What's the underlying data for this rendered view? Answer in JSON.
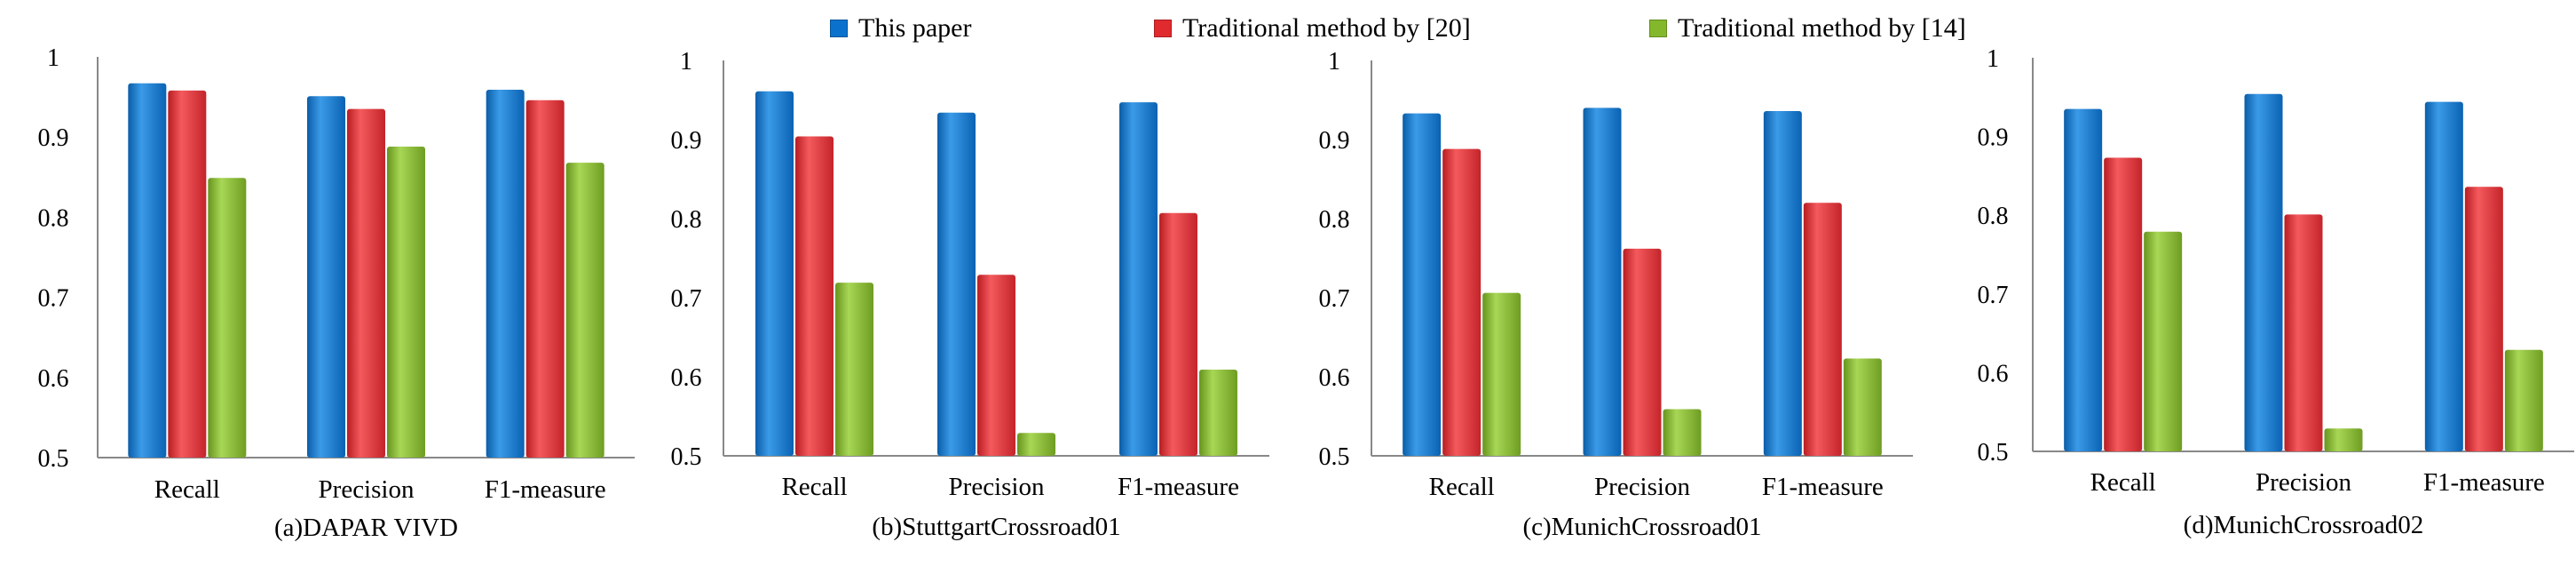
{
  "legend": {
    "entries": [
      "This paper",
      "Traditional method by [20]",
      "Traditional method by [14]"
    ]
  },
  "colors": {
    "this_paper": "#0a72cc",
    "method_20": "#e02a2e",
    "method_14": "#84b82c",
    "axis": "#888888"
  },
  "chart_data": [
    {
      "type": "bar",
      "title": "(a)DAPAR VIVD",
      "categories": [
        "Recall",
        "Precision",
        "F1-measure"
      ],
      "series": [
        {
          "name": "This paper",
          "values": [
            0.967,
            0.951,
            0.959
          ]
        },
        {
          "name": "Traditional method by [20]",
          "values": [
            0.958,
            0.935,
            0.946
          ]
        },
        {
          "name": "Traditional method by [14]",
          "values": [
            0.849,
            0.888,
            0.868
          ]
        }
      ],
      "ylim": [
        0.5,
        1
      ],
      "yticks": [
        "0.5",
        "0.6",
        "0.7",
        "0.8",
        "0.9",
        "1"
      ],
      "xlabel": "",
      "ylabel": ""
    },
    {
      "type": "bar",
      "title": "(b)StuttgartCrossroad01",
      "categories": [
        "Recall",
        "Precision",
        "F1-measure"
      ],
      "series": [
        {
          "name": "This paper",
          "values": [
            0.961,
            0.934,
            0.947
          ]
        },
        {
          "name": "Traditional method by [20]",
          "values": [
            0.904,
            0.729,
            0.807
          ]
        },
        {
          "name": "Traditional method by [14]",
          "values": [
            0.719,
            0.529,
            0.609
          ]
        }
      ],
      "ylim": [
        0.5,
        1
      ],
      "yticks": [
        "0.5",
        "0.6",
        "0.7",
        "0.8",
        "0.9",
        "1"
      ],
      "xlabel": "",
      "ylabel": ""
    },
    {
      "type": "bar",
      "title": "(c)MunichCrossroad01",
      "categories": [
        "Recall",
        "Precision",
        "F1-measure"
      ],
      "series": [
        {
          "name": "This paper",
          "values": [
            0.933,
            0.94,
            0.936
          ]
        },
        {
          "name": "Traditional method by [20]",
          "values": [
            0.888,
            0.762,
            0.82
          ]
        },
        {
          "name": "Traditional method by [14]",
          "values": [
            0.706,
            0.559,
            0.623
          ]
        }
      ],
      "ylim": [
        0.5,
        1
      ],
      "yticks": [
        "0.5",
        "0.6",
        "0.7",
        "0.8",
        "0.9",
        "1"
      ],
      "xlabel": "",
      "ylabel": ""
    },
    {
      "type": "bar",
      "title": "(d)MunichCrossroad02",
      "categories": [
        "Recall",
        "Precision",
        "F1-measure"
      ],
      "series": [
        {
          "name": "This paper",
          "values": [
            0.935,
            0.954,
            0.944
          ]
        },
        {
          "name": "Traditional method by [20]",
          "values": [
            0.873,
            0.801,
            0.836
          ]
        },
        {
          "name": "Traditional method by [14]",
          "values": [
            0.779,
            0.529,
            0.629
          ]
        }
      ],
      "ylim": [
        0.5,
        1
      ],
      "yticks": [
        "0.5",
        "0.6",
        "0.7",
        "0.8",
        "0.9",
        "1"
      ],
      "xlabel": "",
      "ylabel": ""
    }
  ]
}
